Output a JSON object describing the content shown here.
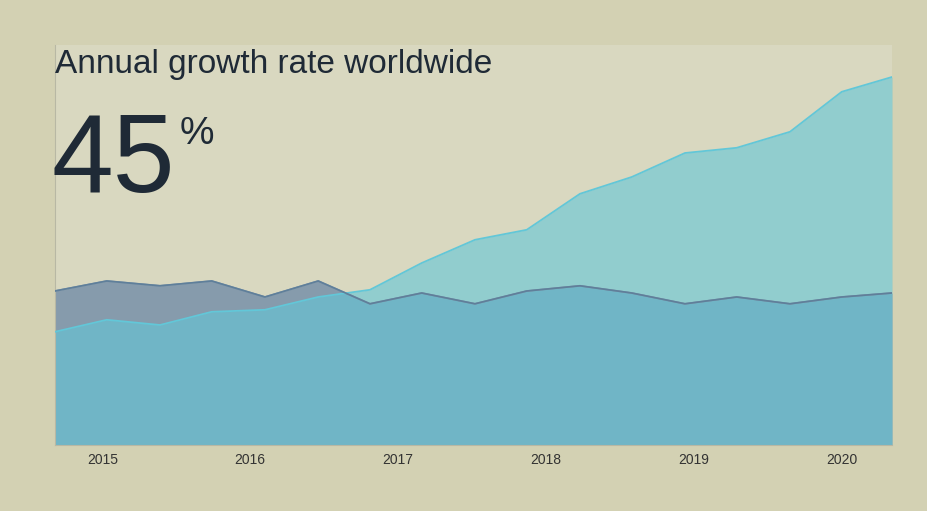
{
  "chart_data": {
    "type": "area",
    "title": "Annual growth rate worldwide",
    "annotations": [
      "45%"
    ],
    "x": [
      2014.68,
      2015.03,
      2015.39,
      2015.74,
      2016.1,
      2016.46,
      2016.81,
      2017.16,
      2017.52,
      2017.87,
      2018.23,
      2018.58,
      2018.94,
      2019.29,
      2019.65,
      2020.0,
      2020.34
    ],
    "series": [
      {
        "color": "#7d95aa",
        "values": [
          38.5,
          41,
          39.8,
          41,
          37,
          41,
          35.3,
          38,
          35.3,
          38.5,
          39.8,
          38,
          35.3,
          37,
          35.3,
          37,
          38
        ]
      },
      {
        "color": "#62c7d8",
        "values": [
          28.3,
          31.3,
          30,
          33.3,
          33.8,
          37,
          38.8,
          45.5,
          51.3,
          53.8,
          62.8,
          67,
          73,
          74.3,
          78.3,
          88.3,
          92
        ]
      }
    ],
    "xlim": [
      2014.68,
      2020.34
    ],
    "xticks": [
      2015,
      2016,
      2017,
      2018,
      2019,
      2020
    ],
    "ylim": [
      0,
      100
    ],
    "yticks": [],
    "tick_labels": "x"
  }
}
